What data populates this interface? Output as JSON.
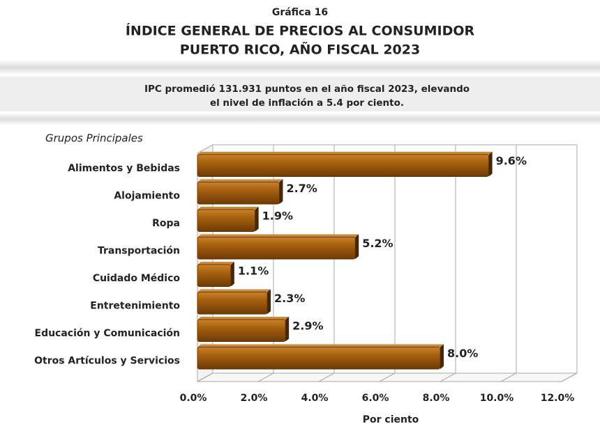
{
  "chart_data": {
    "type": "bar",
    "orientation": "horizontal",
    "kicker": "Gráfica 16",
    "title_lines": [
      "ÍNDICE GENERAL DE PRECIOS AL CONSUMIDOR",
      "PUERTO RICO, AÑO FISCAL 2023"
    ],
    "subtitle_lines": [
      "IPC promedió 131.931 puntos en el año fiscal 2023, elevando",
      "el nivel de inflación a 5.4 por ciento."
    ],
    "ylabel": "Grupos Principales",
    "xlabel": "Por ciento",
    "categories": [
      "Alimentos y Bebidas",
      "Alojamiento",
      "Ropa",
      "Transportación",
      "Cuidado Médico",
      "Entretenimiento",
      "Educación y Comunicación",
      "Otros Artículos y Servicios"
    ],
    "values": [
      9.6,
      2.7,
      1.9,
      5.2,
      1.1,
      2.3,
      2.9,
      8.0
    ],
    "value_labels": [
      "9.6%",
      "2.7%",
      "1.9%",
      "5.2%",
      "1.1%",
      "2.3%",
      "2.9%",
      "8.0%"
    ],
    "color": "#9a5a0c",
    "xlim": [
      0,
      12
    ],
    "xticks": [
      {
        "value": 0,
        "label": "0.0%"
      },
      {
        "value": 2,
        "label": "2.0%"
      },
      {
        "value": 4,
        "label": "4.0%"
      },
      {
        "value": 6,
        "label": "6.0%"
      },
      {
        "value": 8,
        "label": "8.0%"
      },
      {
        "value": 10,
        "label": "10.0%"
      },
      {
        "value": 12,
        "label": "12.0%"
      }
    ],
    "grid": true
  }
}
